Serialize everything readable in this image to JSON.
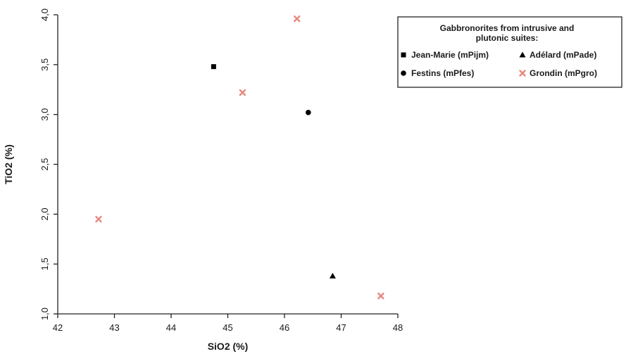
{
  "chart_data": {
    "type": "scatter",
    "xlabel": "SiO2 (%)",
    "ylabel": "TiO2 (%)",
    "xlim": [
      42,
      48
    ],
    "ylim": [
      1.0,
      4.0
    ],
    "x_ticks": [
      "42",
      "43",
      "44",
      "45",
      "46",
      "47",
      "48"
    ],
    "y_ticks": [
      "1,0",
      "1,5",
      "2,0",
      "2,5",
      "3,0",
      "3,5",
      "4,0"
    ],
    "grid": false,
    "legend_position": "top-right outside",
    "legend_title": [
      "Gabbronorites from intrusive and",
      "plutonic suites:"
    ],
    "series": [
      {
        "name": "Jean-Marie (mPijm)",
        "marker": "square",
        "color": "#000000",
        "points": [
          {
            "x": 44.75,
            "y": 3.48
          }
        ]
      },
      {
        "name": "Adélard (mPade)",
        "marker": "triangle",
        "color": "#000000",
        "points": [
          {
            "x": 46.85,
            "y": 1.38
          }
        ]
      },
      {
        "name": "Festins (mPfes)",
        "marker": "circle",
        "color": "#000000",
        "points": [
          {
            "x": 46.42,
            "y": 3.02
          }
        ]
      },
      {
        "name": "Grondin (mPgro)",
        "marker": "x",
        "color": "#e8867c",
        "points": [
          {
            "x": 46.22,
            "y": 3.96
          },
          {
            "x": 45.26,
            "y": 3.22
          },
          {
            "x": 42.72,
            "y": 1.95
          },
          {
            "x": 47.7,
            "y": 1.18
          }
        ]
      }
    ]
  }
}
